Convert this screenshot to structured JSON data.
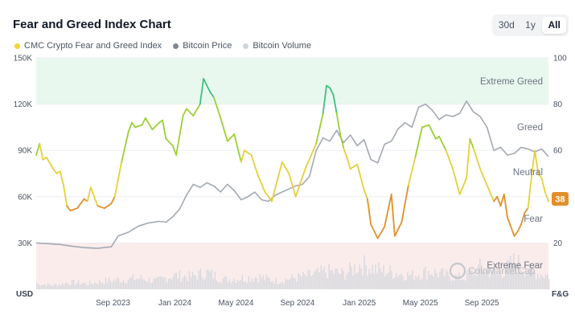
{
  "title": "Fear and Greed Index Chart",
  "range_buttons": [
    {
      "label": "30d",
      "active": false
    },
    {
      "label": "1y",
      "active": false
    },
    {
      "label": "All",
      "active": true
    }
  ],
  "legend": [
    {
      "label": "CMC Crypto Fear and Greed Index",
      "color": "#f2d53c"
    },
    {
      "label": "Bitcoin Price",
      "color": "#808893"
    },
    {
      "label": "Bitcoin Volume",
      "color": "#cfd4da"
    }
  ],
  "watermark": "CoinMarketCap",
  "current_badge": {
    "value": "38",
    "color": "#e0902a"
  },
  "chart_data": {
    "type": "line",
    "left_axis": {
      "unit": "USD",
      "ticks": [
        "30K",
        "60K",
        "90K",
        "120K",
        "150K"
      ],
      "tick_values": [
        30000,
        60000,
        90000,
        120000,
        150000
      ],
      "range": [
        0,
        150000
      ]
    },
    "right_axis": {
      "unit": "F&G",
      "ticks": [
        "20",
        "40",
        "60",
        "80",
        "100"
      ],
      "tick_values": [
        20,
        40,
        60,
        80,
        100
      ],
      "range": [
        0,
        100
      ]
    },
    "x_ticks": [
      {
        "label": "Sep 2023",
        "t": 0.125
      },
      {
        "label": "Jan 2024",
        "t": 0.306
      },
      {
        "label": "May 2024",
        "t": 0.485
      },
      {
        "label": "Sep 2024",
        "t": 0.665
      },
      {
        "label": "Jan 2025",
        "t": 0.846
      },
      {
        "label": "May 2025",
        "t": 1.025
      },
      {
        "label": "Sep 2025",
        "t": 1.205
      }
    ],
    "x_range": [
      -0.1,
      1.4
    ],
    "zones": [
      {
        "label": "Extreme Greed",
        "from": 80,
        "to": 100,
        "color": "#e9f8ef"
      },
      {
        "label": "Greed",
        "from": 60,
        "to": 80,
        "color": null
      },
      {
        "label": "Neutral",
        "from": 40,
        "to": 60,
        "color": null
      },
      {
        "label": "Fear",
        "from": 20,
        "to": 40,
        "color": null
      },
      {
        "label": "Extreme Fear",
        "from": 0,
        "to": 20,
        "color": "#fbecec"
      }
    ],
    "fear_greed_colors": {
      "extreme_fear": "#e04a44",
      "fear": "#e0902a",
      "neutral": "#e6cf3a",
      "greed": "#9ccf33",
      "extreme_greed": "#3fbf7f"
    },
    "fear_greed_series": {
      "name": "CMC Crypto Fear and Greed Index",
      "x": [
        -0.1,
        -0.09,
        -0.08,
        -0.07,
        -0.05,
        -0.04,
        -0.03,
        -0.02,
        -0.01,
        0.0,
        0.02,
        0.04,
        0.05,
        0.06,
        0.08,
        0.1,
        0.12,
        0.13,
        0.15,
        0.17,
        0.18,
        0.19,
        0.21,
        0.22,
        0.24,
        0.26,
        0.27,
        0.28,
        0.3,
        0.31,
        0.33,
        0.34,
        0.36,
        0.38,
        0.39,
        0.41,
        0.42,
        0.44,
        0.46,
        0.48,
        0.5,
        0.51,
        0.53,
        0.55,
        0.57,
        0.59,
        0.62,
        0.64,
        0.66,
        0.69,
        0.7,
        0.72,
        0.74,
        0.75,
        0.76,
        0.77,
        0.78,
        0.79,
        0.8,
        0.81,
        0.82,
        0.84,
        0.86,
        0.87,
        0.88,
        0.9,
        0.92,
        0.94,
        0.95,
        0.97,
        0.99,
        1.01,
        1.03,
        1.05,
        1.07,
        1.08,
        1.1,
        1.12,
        1.14,
        1.16,
        1.17,
        1.18,
        1.2,
        1.22,
        1.24,
        1.25,
        1.26,
        1.27,
        1.28,
        1.3,
        1.31,
        1.32,
        1.33,
        1.34,
        1.35,
        1.36,
        1.37,
        1.38,
        1.39,
        1.4
      ],
      "values": [
        58,
        63,
        56,
        57,
        52,
        50,
        51,
        45,
        36,
        34,
        35,
        39,
        38,
        44,
        36,
        35,
        37,
        40,
        55,
        68,
        72,
        70,
        71,
        74,
        69,
        72,
        73,
        65,
        62,
        58,
        75,
        78,
        75,
        80,
        91,
        85,
        83,
        74,
        64,
        67,
        55,
        60,
        58,
        49,
        42,
        38,
        55,
        50,
        40,
        53,
        56,
        63,
        76,
        88,
        87,
        84,
        76,
        67,
        61,
        57,
        52,
        54,
        43,
        39,
        28,
        22,
        27,
        41,
        23,
        29,
        45,
        57,
        70,
        71,
        65,
        66,
        60,
        52,
        41,
        48,
        65,
        61,
        52,
        45,
        38,
        40,
        36,
        41,
        31,
        23,
        25,
        28,
        33,
        35,
        48,
        60,
        50,
        48,
        42,
        38
      ]
    },
    "price_series": {
      "name": "Bitcoin Price",
      "x": [
        -0.1,
        -0.06,
        -0.03,
        0.0,
        0.04,
        0.08,
        0.12,
        0.14,
        0.17,
        0.2,
        0.23,
        0.26,
        0.28,
        0.3,
        0.32,
        0.34,
        0.36,
        0.38,
        0.4,
        0.42,
        0.44,
        0.46,
        0.48,
        0.5,
        0.52,
        0.54,
        0.56,
        0.58,
        0.6,
        0.62,
        0.64,
        0.66,
        0.68,
        0.7,
        0.72,
        0.74,
        0.76,
        0.78,
        0.8,
        0.82,
        0.84,
        0.86,
        0.88,
        0.9,
        0.92,
        0.94,
        0.96,
        0.98,
        1.0,
        1.02,
        1.04,
        1.06,
        1.08,
        1.1,
        1.12,
        1.14,
        1.16,
        1.18,
        1.2,
        1.22,
        1.24,
        1.26,
        1.28,
        1.3,
        1.32,
        1.34,
        1.36,
        1.38,
        1.4
      ],
      "values": [
        30000,
        29500,
        29000,
        28000,
        27000,
        26500,
        27500,
        34500,
        37000,
        41000,
        43000,
        44000,
        43500,
        47000,
        52000,
        61000,
        68000,
        66000,
        69000,
        67000,
        63000,
        68000,
        64000,
        58000,
        60000,
        63000,
        58000,
        57000,
        61000,
        63000,
        65000,
        67000,
        68000,
        73000,
        90000,
        98000,
        96000,
        103000,
        95000,
        100000,
        93000,
        97000,
        84000,
        82000,
        94000,
        96000,
        104000,
        108000,
        105000,
        118000,
        120000,
        116000,
        110000,
        113000,
        112000,
        114000,
        122000,
        115000,
        112000,
        105000,
        90000,
        92000,
        87000,
        88000,
        92000,
        91000,
        89000,
        91000,
        86000
      ]
    },
    "volume_series": {
      "name": "Bitcoin Volume",
      "x": [
        -0.1,
        -0.05,
        0.0,
        0.05,
        0.1,
        0.15,
        0.2,
        0.25,
        0.3,
        0.35,
        0.4,
        0.45,
        0.5,
        0.55,
        0.6,
        0.65,
        0.7,
        0.75,
        0.8,
        0.85,
        0.9,
        0.95,
        1.0,
        1.05,
        1.1,
        1.15,
        1.2,
        1.25,
        1.3,
        1.35,
        1.4
      ],
      "values": [
        0.2,
        0.15,
        0.25,
        0.2,
        0.3,
        0.35,
        0.4,
        0.3,
        0.5,
        0.45,
        0.6,
        0.35,
        0.4,
        0.45,
        0.3,
        0.4,
        0.5,
        0.65,
        0.55,
        0.9,
        0.7,
        0.6,
        0.5,
        0.65,
        0.5,
        0.4,
        0.8,
        0.5,
        1.0,
        0.6,
        0.5
      ]
    }
  }
}
